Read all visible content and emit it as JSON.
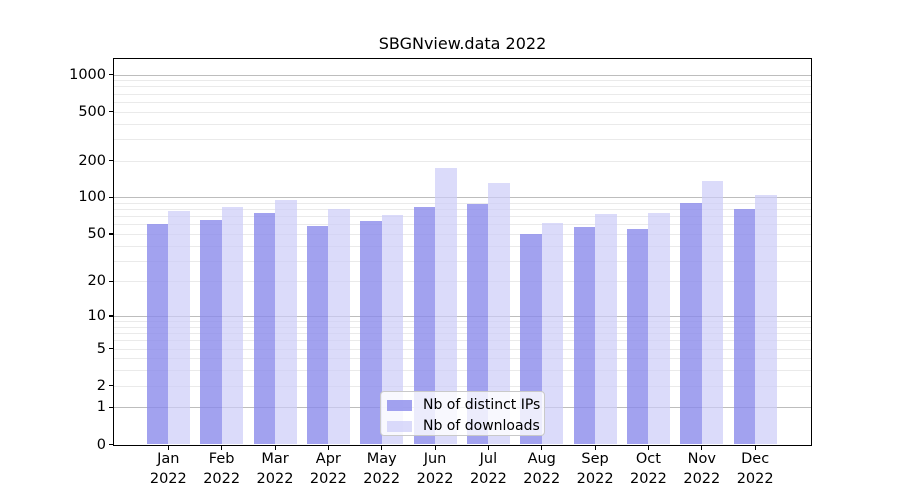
{
  "chart_data": {
    "type": "bar",
    "title": "SBGNview.data 2022",
    "x_categories": [
      "Jan",
      "Feb",
      "Mar",
      "Apr",
      "May",
      "Jun",
      "Jul",
      "Aug",
      "Sep",
      "Oct",
      "Nov",
      "Dec"
    ],
    "x_year": "2022",
    "series": [
      {
        "name": "Nb of distinct IPs",
        "color": "rgba(136,136,234,0.78)",
        "values": [
          60,
          65,
          75,
          58,
          64,
          84,
          89,
          50,
          57,
          55,
          90,
          81
        ]
      },
      {
        "name": "Nb of downloads",
        "color": "rgba(204,204,248,0.70)",
        "values": [
          78,
          84,
          95,
          81,
          72,
          173,
          130,
          62,
          73,
          74,
          135,
          104
        ]
      }
    ],
    "y_scale": "log1p",
    "y_ticks": [
      0,
      1,
      2,
      5,
      10,
      20,
      50,
      100,
      200,
      500,
      1000
    ],
    "ylim": [
      0,
      1350
    ],
    "grid": true,
    "grid_major_color": "#bdbdbd",
    "grid_minor_color": "#eaeaea",
    "legend_position": "lower center"
  }
}
